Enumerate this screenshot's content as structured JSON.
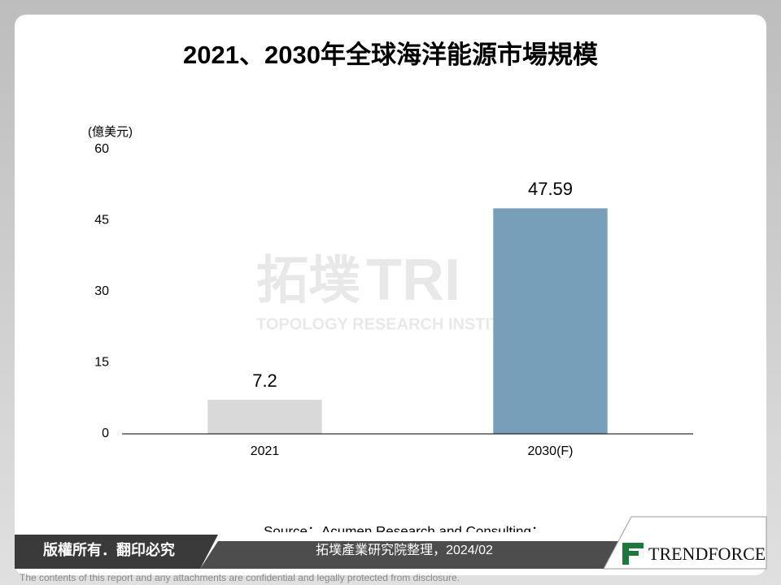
{
  "chart_data": {
    "type": "bar",
    "title": "2021、2030年全球海洋能源市場規模",
    "y_axis_label": "(億美元)",
    "categories": [
      "2021",
      "2030(F)"
    ],
    "values": [
      7.2,
      47.59
    ],
    "colors": [
      "#d9d9d9",
      "#789fba"
    ],
    "ylim": [
      0,
      60
    ],
    "yticks": [
      0,
      15,
      30,
      45,
      60
    ],
    "grid": false
  },
  "watermark": {
    "mark": "拓墣",
    "logo": "TRI",
    "name": "TOPOLOGY RESEARCH INSTITUTE"
  },
  "source": [
    "Source：Acumen Research and Consulting；",
    "拓墣產業研究院整理，2024/02"
  ],
  "footer": {
    "copyright": "版權所有．翻印必究",
    "brand": "TRENDFORCE",
    "disclaimer": "The contents of this report and any attachments are confidential and legally protected from disclosure."
  }
}
